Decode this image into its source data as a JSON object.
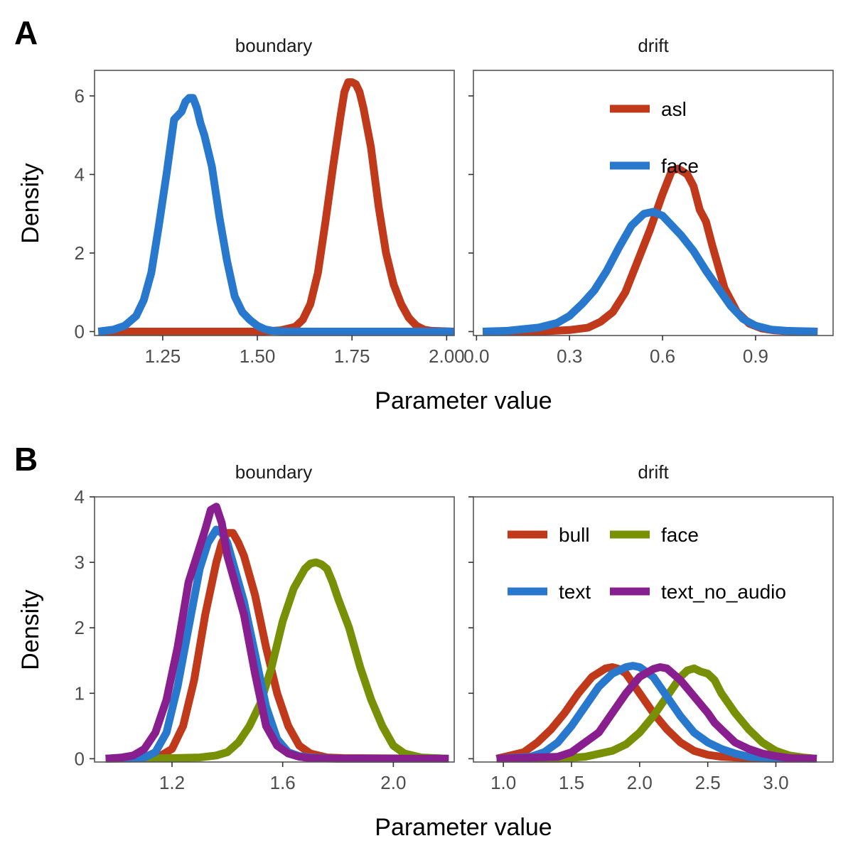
{
  "figure": {
    "colors": {
      "asl": "#C0391B",
      "face_A": "#2878CE",
      "bull": "#C0391B",
      "face_B": "#779006",
      "text": "#2878CE",
      "text_no_audio": "#891E8F"
    }
  },
  "chart_data": [
    {
      "type": "line",
      "panel_tag": "A",
      "facet": "boundary",
      "xlabel": "Parameter value",
      "ylabel": "Density",
      "xlim": [
        1.07,
        2.02
      ],
      "ylim": [
        -0.1,
        6.65
      ],
      "x_ticks": [
        1.25,
        1.5,
        1.75,
        2.0
      ],
      "x_tick_labels": [
        "1.25",
        "1.50",
        "1.75",
        "2.00"
      ],
      "y_ticks": [
        0,
        2,
        4,
        6
      ],
      "y_tick_labels": [
        "0",
        "2",
        "4",
        "6"
      ],
      "series": [
        {
          "name": "asl",
          "color": "#C0391B",
          "x": [
            1.08,
            1.5,
            1.56,
            1.6,
            1.62,
            1.64,
            1.66,
            1.68,
            1.7,
            1.72,
            1.73,
            1.74,
            1.75,
            1.76,
            1.77,
            1.78,
            1.8,
            1.82,
            1.84,
            1.86,
            1.88,
            1.9,
            1.92,
            1.94,
            1.96,
            2.02
          ],
          "y": [
            0.0,
            0.0,
            0.03,
            0.12,
            0.3,
            0.7,
            1.5,
            2.8,
            4.2,
            5.5,
            6.1,
            6.35,
            6.35,
            6.3,
            6.1,
            5.7,
            4.7,
            3.2,
            2.0,
            1.2,
            0.7,
            0.35,
            0.15,
            0.05,
            0.02,
            0.0
          ]
        },
        {
          "name": "face",
          "color": "#2878CE",
          "x": [
            1.08,
            1.12,
            1.15,
            1.18,
            1.2,
            1.22,
            1.24,
            1.26,
            1.28,
            1.3,
            1.31,
            1.32,
            1.33,
            1.34,
            1.35,
            1.36,
            1.38,
            1.4,
            1.42,
            1.44,
            1.46,
            1.48,
            1.5,
            1.52,
            1.54,
            1.58,
            1.62,
            2.02
          ],
          "y": [
            0.0,
            0.05,
            0.15,
            0.4,
            0.8,
            1.5,
            2.7,
            4.0,
            5.4,
            5.6,
            5.85,
            5.95,
            5.95,
            5.7,
            5.3,
            5.0,
            4.2,
            2.9,
            1.8,
            0.9,
            0.5,
            0.3,
            0.15,
            0.06,
            0.02,
            0.0,
            0.0,
            0.0
          ]
        }
      ]
    },
    {
      "type": "line",
      "panel_tag": "",
      "facet": "drift",
      "xlabel": "Parameter value",
      "ylabel": "Density",
      "xlim": [
        -0.01,
        1.15
      ],
      "ylim": [
        -0.1,
        6.65
      ],
      "x_ticks": [
        0.0,
        0.3,
        0.6,
        0.9
      ],
      "x_tick_labels": [
        "0.0",
        "0.3",
        "0.6",
        "0.9"
      ],
      "y_ticks": [
        0,
        2,
        4,
        6
      ],
      "y_tick_labels": [
        "",
        "",
        "",
        ""
      ],
      "legend": {
        "placement": "top-center",
        "entries": [
          "asl",
          "face"
        ]
      },
      "series": [
        {
          "name": "asl",
          "color": "#C0391B",
          "x": [
            0.02,
            0.2,
            0.3,
            0.36,
            0.4,
            0.44,
            0.48,
            0.52,
            0.56,
            0.6,
            0.63,
            0.65,
            0.68,
            0.7,
            0.72,
            0.74,
            0.76,
            0.8,
            0.84,
            0.88,
            0.92,
            0.96,
            1.0,
            1.1
          ],
          "y": [
            0.0,
            0.0,
            0.04,
            0.1,
            0.25,
            0.5,
            1.0,
            1.8,
            2.6,
            3.5,
            4.1,
            4.15,
            4.0,
            3.7,
            3.1,
            2.8,
            2.2,
            1.1,
            0.5,
            0.2,
            0.08,
            0.03,
            0.01,
            0.0
          ]
        },
        {
          "name": "face",
          "color": "#2878CE",
          "x": [
            0.02,
            0.1,
            0.2,
            0.26,
            0.3,
            0.34,
            0.38,
            0.42,
            0.46,
            0.5,
            0.54,
            0.57,
            0.6,
            0.63,
            0.66,
            0.7,
            0.74,
            0.78,
            0.82,
            0.86,
            0.9,
            0.95,
            1.0,
            1.1
          ],
          "y": [
            0.0,
            0.02,
            0.1,
            0.22,
            0.4,
            0.7,
            1.05,
            1.55,
            2.15,
            2.7,
            3.0,
            3.05,
            2.95,
            2.7,
            2.45,
            2.05,
            1.55,
            1.1,
            0.65,
            0.32,
            0.15,
            0.05,
            0.02,
            0.0
          ]
        }
      ]
    },
    {
      "type": "line",
      "panel_tag": "B",
      "facet": "boundary",
      "xlabel": "Parameter value",
      "ylabel": "Density",
      "xlim": [
        0.92,
        2.22
      ],
      "ylim": [
        -0.05,
        4.0
      ],
      "x_ticks": [
        1.2,
        1.6,
        2.0
      ],
      "x_tick_labels": [
        "1.2",
        "1.6",
        "2.0"
      ],
      "y_ticks": [
        0,
        1,
        2,
        3,
        4
      ],
      "y_tick_labels": [
        "0",
        "1",
        "2",
        "3",
        "4"
      ],
      "series": [
        {
          "name": "bull",
          "color": "#C0391B",
          "x": [
            0.96,
            1.1,
            1.16,
            1.2,
            1.24,
            1.28,
            1.32,
            1.36,
            1.38,
            1.4,
            1.42,
            1.44,
            1.46,
            1.5,
            1.54,
            1.58,
            1.62,
            1.66,
            1.7,
            1.76,
            1.82,
            2.2
          ],
          "y": [
            0.0,
            0.01,
            0.05,
            0.15,
            0.5,
            1.2,
            2.2,
            3.0,
            3.3,
            3.45,
            3.45,
            3.3,
            3.1,
            2.5,
            1.7,
            1.0,
            0.5,
            0.2,
            0.08,
            0.02,
            0.01,
            0.0
          ]
        },
        {
          "name": "face",
          "color": "#779006",
          "x": [
            0.96,
            1.2,
            1.3,
            1.36,
            1.4,
            1.44,
            1.48,
            1.52,
            1.56,
            1.6,
            1.64,
            1.68,
            1.7,
            1.72,
            1.74,
            1.76,
            1.78,
            1.8,
            1.84,
            1.88,
            1.92,
            1.96,
            2.0,
            2.04,
            2.1,
            2.2
          ],
          "y": [
            0.0,
            0.01,
            0.02,
            0.05,
            0.1,
            0.25,
            0.5,
            0.85,
            1.4,
            2.1,
            2.6,
            2.9,
            2.98,
            3.0,
            2.97,
            2.9,
            2.7,
            2.45,
            2.0,
            1.4,
            0.9,
            0.5,
            0.2,
            0.08,
            0.02,
            0.0
          ]
        },
        {
          "name": "text",
          "color": "#2878CE",
          "x": [
            0.96,
            1.1,
            1.14,
            1.18,
            1.22,
            1.26,
            1.3,
            1.33,
            1.36,
            1.38,
            1.4,
            1.42,
            1.46,
            1.5,
            1.54,
            1.58,
            1.62,
            1.66,
            1.7,
            1.8,
            2.2
          ],
          "y": [
            0.0,
            0.02,
            0.1,
            0.4,
            1.1,
            2.0,
            2.9,
            3.3,
            3.5,
            3.45,
            3.3,
            3.0,
            2.4,
            1.6,
            0.8,
            0.3,
            0.1,
            0.04,
            0.02,
            0.0,
            0.0
          ]
        },
        {
          "name": "text_no_audio",
          "color": "#891E8F",
          "x": [
            0.96,
            1.02,
            1.06,
            1.1,
            1.14,
            1.18,
            1.22,
            1.26,
            1.29,
            1.32,
            1.34,
            1.36,
            1.38,
            1.4,
            1.42,
            1.46,
            1.5,
            1.54,
            1.58,
            1.62,
            1.66,
            1.7,
            1.8,
            2.2
          ],
          "y": [
            0.0,
            0.02,
            0.05,
            0.15,
            0.4,
            0.9,
            1.7,
            2.7,
            3.1,
            3.5,
            3.8,
            3.85,
            3.6,
            3.1,
            2.8,
            2.2,
            1.3,
            0.5,
            0.2,
            0.08,
            0.03,
            0.01,
            0.0,
            0.0
          ]
        }
      ]
    },
    {
      "type": "line",
      "panel_tag": "",
      "facet": "drift",
      "xlabel": "Parameter value",
      "ylabel": "Density",
      "xlim": [
        0.78,
        3.42
      ],
      "ylim": [
        -0.05,
        4.0
      ],
      "x_ticks": [
        1.0,
        1.5,
        2.0,
        2.5,
        3.0
      ],
      "x_tick_labels": [
        "1.0",
        "1.5",
        "2.0",
        "2.5",
        "3.0"
      ],
      "y_ticks": [
        0,
        1,
        2,
        3,
        4
      ],
      "y_tick_labels": [
        "",
        "",
        "",
        "",
        ""
      ],
      "legend": {
        "placement": "top-center",
        "entries": [
          "bull",
          "face",
          "text",
          "text_no_audio"
        ]
      },
      "series": [
        {
          "name": "bull",
          "color": "#C0391B",
          "x": [
            0.95,
            1.05,
            1.15,
            1.25,
            1.35,
            1.45,
            1.55,
            1.65,
            1.75,
            1.8,
            1.85,
            1.9,
            2.0,
            2.1,
            2.2,
            2.3,
            2.4,
            2.5,
            2.6,
            2.8,
            3.0,
            3.3
          ],
          "y": [
            0.0,
            0.05,
            0.1,
            0.25,
            0.45,
            0.7,
            1.0,
            1.25,
            1.38,
            1.4,
            1.37,
            1.3,
            1.0,
            0.7,
            0.45,
            0.25,
            0.12,
            0.06,
            0.03,
            0.01,
            0.0,
            0.0
          ]
        },
        {
          "name": "face",
          "color": "#779006",
          "x": [
            0.95,
            1.4,
            1.6,
            1.8,
            1.9,
            2.0,
            2.1,
            2.2,
            2.3,
            2.35,
            2.4,
            2.45,
            2.5,
            2.55,
            2.6,
            2.7,
            2.8,
            2.9,
            3.0,
            3.1,
            3.2,
            3.3
          ],
          "y": [
            0.0,
            0.0,
            0.03,
            0.12,
            0.22,
            0.4,
            0.65,
            0.95,
            1.25,
            1.35,
            1.38,
            1.33,
            1.3,
            1.2,
            1.0,
            0.7,
            0.45,
            0.25,
            0.12,
            0.05,
            0.02,
            0.0
          ]
        },
        {
          "name": "text",
          "color": "#2878CE",
          "x": [
            0.95,
            1.2,
            1.3,
            1.4,
            1.5,
            1.6,
            1.7,
            1.8,
            1.9,
            1.95,
            2.0,
            2.1,
            2.2,
            2.3,
            2.4,
            2.5,
            2.6,
            2.7,
            2.8,
            3.0,
            3.3
          ],
          "y": [
            0.0,
            0.03,
            0.1,
            0.25,
            0.5,
            0.8,
            1.1,
            1.3,
            1.4,
            1.42,
            1.4,
            1.25,
            0.95,
            0.65,
            0.4,
            0.25,
            0.15,
            0.08,
            0.03,
            0.01,
            0.0
          ]
        },
        {
          "name": "text_no_audio",
          "color": "#891E8F",
          "x": [
            0.95,
            1.4,
            1.5,
            1.6,
            1.7,
            1.8,
            1.9,
            2.0,
            2.1,
            2.15,
            2.2,
            2.3,
            2.4,
            2.5,
            2.55,
            2.6,
            2.7,
            2.8,
            2.9,
            3.0,
            3.1,
            3.3
          ],
          "y": [
            0.0,
            0.03,
            0.1,
            0.25,
            0.4,
            0.7,
            1.0,
            1.25,
            1.37,
            1.4,
            1.38,
            1.2,
            0.95,
            0.7,
            0.55,
            0.45,
            0.25,
            0.15,
            0.08,
            0.04,
            0.01,
            0.0
          ]
        }
      ]
    }
  ]
}
